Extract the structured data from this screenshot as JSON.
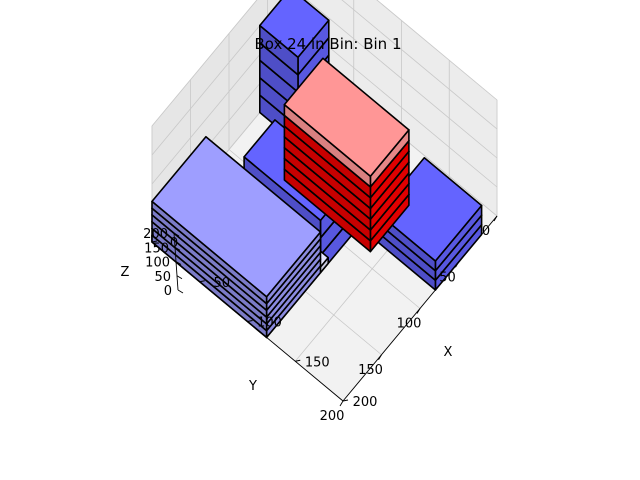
{
  "chart_data": {
    "type": "3d-bar",
    "title": "Box 24 in Bin: Bin 1",
    "xlabel": "X",
    "ylabel": "Y",
    "zlabel": "Z",
    "xlim": [
      0,
      200
    ],
    "ylim": [
      0,
      200
    ],
    "zlim": [
      0,
      200
    ],
    "x_ticks": [
      "0",
      "50",
      "100",
      "150",
      "200"
    ],
    "y_ticks": [
      "0",
      "50",
      "100",
      "150",
      "200"
    ],
    "z_ticks": [
      "0",
      "50",
      "100",
      "150",
      "200"
    ],
    "grid": true,
    "colors": {
      "placed": "#6464ff",
      "placed_light": "#9e9eff",
      "current": "#ff0000",
      "current_top": "#ff9696",
      "pale": "#e6e6ff",
      "edge": "#000000"
    },
    "boxes": [
      {
        "name": "box-blue-front",
        "x": [
          140,
          200
        ],
        "y": [
          20,
          80
        ],
        "z": [
          0,
          50
        ],
        "layers": 3,
        "color": "placed"
      },
      {
        "name": "box-blue-tower",
        "x": [
          0,
          40
        ],
        "y": [
          20,
          60
        ],
        "z": [
          0,
          150
        ],
        "layers": 5,
        "color": "placed"
      },
      {
        "name": "box-blue-middle",
        "x": [
          40,
          120
        ],
        "y": [
          90,
          130
        ],
        "z": [
          0,
          90
        ],
        "layers": 3,
        "color": "placed"
      },
      {
        "name": "box-pale-floor",
        "x": [
          0,
          120
        ],
        "y": [
          120,
          200
        ],
        "z": [
          0,
          10
        ],
        "layers": 1,
        "color": "pale"
      },
      {
        "name": "box-lightblue-right",
        "x": [
          0,
          120
        ],
        "y": [
          130,
          200
        ],
        "z": [
          0,
          70
        ],
        "layers": 6,
        "color": "placed_light"
      },
      {
        "name": "box-red-current",
        "x": [
          50,
          140
        ],
        "y": [
          40,
          90
        ],
        "z": [
          0,
          130
        ],
        "layers": 7,
        "color": "current"
      }
    ]
  }
}
